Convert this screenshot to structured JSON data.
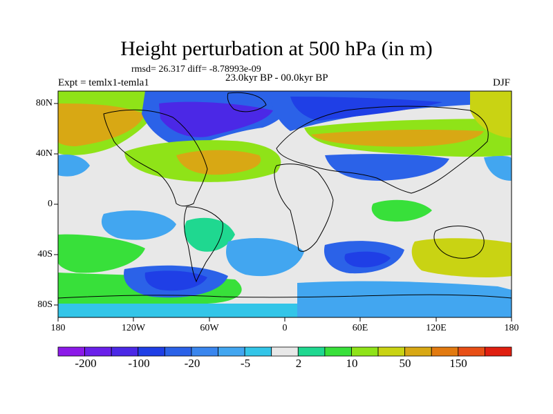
{
  "title": "Height perturbation at 500 hPa (in m)",
  "stats": "rmsd= 26.317 diff= -8.78993e-09",
  "period": "23.0kyr BP - 00.0kyr BP",
  "experiment": "Expt = temlx1-temla1",
  "season": "DJF",
  "lat_labels": [
    "80N",
    "40N",
    "0",
    "40S",
    "80S"
  ],
  "lon_labels": [
    "180",
    "120W",
    "60W",
    "0",
    "60E",
    "120E",
    "180"
  ],
  "colorbar": {
    "labels": [
      "-200",
      "-100",
      "-20",
      "-5",
      "2",
      "10",
      "50",
      "150"
    ],
    "colors": [
      "#8c1ae8",
      "#6a20ea",
      "#4b28e6",
      "#1f3fe6",
      "#2b62e8",
      "#3a86ee",
      "#42a6f0",
      "#33c5e8",
      "#e8e8e8",
      "#1fd890",
      "#38e03a",
      "#8fe318",
      "#c9d313",
      "#d8a814",
      "#e27a10",
      "#e84f16",
      "#e01f10"
    ]
  },
  "field_colors": {
    "neutral": "#e8e8e8",
    "weak_pos": "#1fd890",
    "pos": "#38e03a",
    "mod_pos": "#8fe318",
    "strong_pos": "#c9d313",
    "very_strong_pos": "#d8a814",
    "weak_neg": "#33c5e8",
    "neg": "#42a6f0",
    "mod_neg": "#2b62e8",
    "strong_neg": "#1f3fe6",
    "very_strong_neg": "#4b28e6"
  }
}
